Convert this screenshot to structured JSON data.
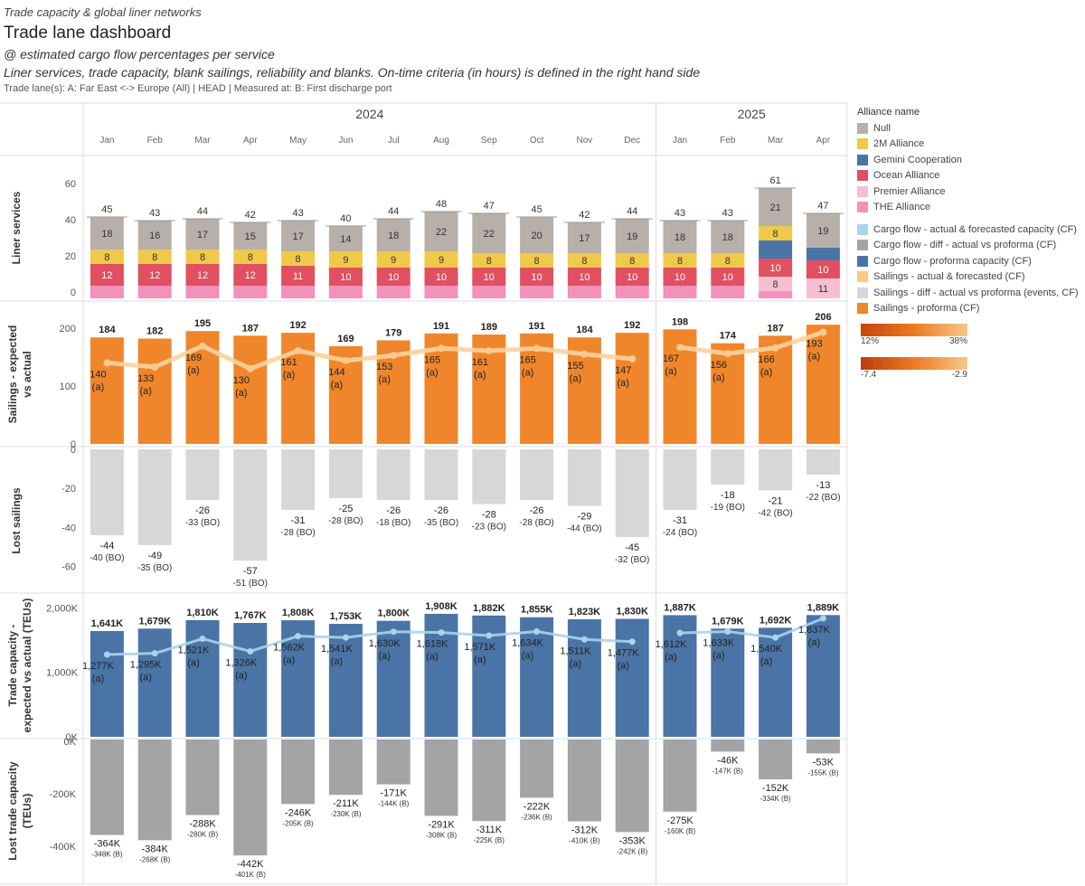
{
  "header": {
    "supertitle": "Trade capacity & global liner networks",
    "title": "Trade lane dashboard",
    "subtitle1": "@ estimated cargo flow percentages per service",
    "subtitle2": "Liner services, trade capacity, blank sailings, reliability and blanks. On-time criteria (in hours) is defined  in the right hand side",
    "filter": "Trade lane(s): A: Far East <-> Europe (All)  |  HEAD  |  Measured at: B: First discharge port"
  },
  "legend": {
    "title": "Alliance name",
    "items": [
      {
        "label": "Null",
        "color": "#b7b0aa"
      },
      {
        "label": "2M Alliance",
        "color": "#f1c94a"
      },
      {
        "label": "Gemini Cooperation",
        "color": "#4a74a6"
      },
      {
        "label": "Ocean Alliance",
        "color": "#e05060"
      },
      {
        "label": "Premier Alliance",
        "color": "#f6bed1"
      },
      {
        "label": "THE Alliance",
        "color": "#f291bb"
      }
    ],
    "items2": [
      {
        "label": "Cargo flow - actual & forecasted capacity (CF)",
        "color": "#a9d4ec"
      },
      {
        "label": "Cargo flow - diff - actual vs proforma (CF)",
        "color": "#a4a4a4"
      },
      {
        "label": "Cargo flow - proforma capacity (CF)",
        "color": "#4a74a6"
      },
      {
        "label": "Sailings - actual & forecasted (CF)",
        "color": "#f8c98d"
      },
      {
        "label": "Sailings - diff - actual vs proforma (events, CF)",
        "color": "#d7d7d7"
      },
      {
        "label": "Sailings - proforma (CF)",
        "color": "#f0862b"
      }
    ],
    "gradient1": {
      "min": "12%",
      "max": "38%"
    },
    "gradient2": {
      "min": "-7.4",
      "max": "-2.9"
    }
  },
  "chart_data": {
    "type": "bar",
    "years": [
      {
        "label": "2024",
        "months": 12
      },
      {
        "label": "2025",
        "months": 4
      }
    ],
    "categories": [
      "Jan",
      "Feb",
      "Mar",
      "Apr",
      "May",
      "Jun",
      "Jul",
      "Aug",
      "Sep",
      "Oct",
      "Nov",
      "Dec",
      "Jan",
      "Feb",
      "Mar",
      "Apr"
    ],
    "liner_services": {
      "ylabel": "Liner services",
      "ticks": [
        "60",
        "40",
        "20",
        "0"
      ],
      "totals": [
        "45",
        "43",
        "44",
        "42",
        "43",
        "40",
        "44",
        "48",
        "47",
        "45",
        "42",
        "44",
        "43",
        "43",
        "61",
        "47"
      ],
      "segments": [
        [
          {
            "a": "THE",
            "v": 7
          },
          {
            "a": "Ocean",
            "v": 12,
            "l": "12"
          },
          {
            "a": "2M",
            "v": 8,
            "l": "8"
          },
          {
            "a": "Null",
            "v": 18,
            "l": "18"
          }
        ],
        [
          {
            "a": "THE",
            "v": 7
          },
          {
            "a": "Ocean",
            "v": 12,
            "l": "12"
          },
          {
            "a": "2M",
            "v": 8,
            "l": "8"
          },
          {
            "a": "Null",
            "v": 16,
            "l": "16"
          }
        ],
        [
          {
            "a": "THE",
            "v": 7
          },
          {
            "a": "Ocean",
            "v": 12,
            "l": "12"
          },
          {
            "a": "2M",
            "v": 8,
            "l": "8"
          },
          {
            "a": "Null",
            "v": 17,
            "l": "17"
          }
        ],
        [
          {
            "a": "THE",
            "v": 7
          },
          {
            "a": "Ocean",
            "v": 12,
            "l": "12"
          },
          {
            "a": "2M",
            "v": 8,
            "l": "8"
          },
          {
            "a": "Null",
            "v": 15,
            "l": "15"
          }
        ],
        [
          {
            "a": "THE",
            "v": 7
          },
          {
            "a": "Ocean",
            "v": 11,
            "l": "11"
          },
          {
            "a": "2M",
            "v": 8,
            "l": "8"
          },
          {
            "a": "Null",
            "v": 17,
            "l": "17"
          }
        ],
        [
          {
            "a": "THE",
            "v": 7
          },
          {
            "a": "Ocean",
            "v": 10,
            "l": "10"
          },
          {
            "a": "2M",
            "v": 9,
            "l": "9"
          },
          {
            "a": "Null",
            "v": 14,
            "l": "14"
          }
        ],
        [
          {
            "a": "THE",
            "v": 7
          },
          {
            "a": "Ocean",
            "v": 10,
            "l": "10"
          },
          {
            "a": "2M",
            "v": 9,
            "l": "9"
          },
          {
            "a": "Null",
            "v": 18,
            "l": "18"
          }
        ],
        [
          {
            "a": "THE",
            "v": 7
          },
          {
            "a": "Ocean",
            "v": 10,
            "l": "10"
          },
          {
            "a": "2M",
            "v": 9,
            "l": "9"
          },
          {
            "a": "Null",
            "v": 22,
            "l": "22"
          }
        ],
        [
          {
            "a": "THE",
            "v": 7
          },
          {
            "a": "Ocean",
            "v": 10,
            "l": "10"
          },
          {
            "a": "2M",
            "v": 8,
            "l": "8"
          },
          {
            "a": "Null",
            "v": 22,
            "l": "22"
          }
        ],
        [
          {
            "a": "THE",
            "v": 7
          },
          {
            "a": "Ocean",
            "v": 10,
            "l": "10"
          },
          {
            "a": "2M",
            "v": 8,
            "l": "8"
          },
          {
            "a": "Null",
            "v": 20,
            "l": "20"
          }
        ],
        [
          {
            "a": "THE",
            "v": 7
          },
          {
            "a": "Ocean",
            "v": 10,
            "l": "10"
          },
          {
            "a": "2M",
            "v": 8,
            "l": "8"
          },
          {
            "a": "Null",
            "v": 17,
            "l": "17"
          }
        ],
        [
          {
            "a": "THE",
            "v": 7
          },
          {
            "a": "Ocean",
            "v": 10,
            "l": "10"
          },
          {
            "a": "2M",
            "v": 8,
            "l": "8"
          },
          {
            "a": "Null",
            "v": 19,
            "l": "19"
          }
        ],
        [
          {
            "a": "THE",
            "v": 7
          },
          {
            "a": "Ocean",
            "v": 10,
            "l": "10"
          },
          {
            "a": "2M",
            "v": 8,
            "l": "8"
          },
          {
            "a": "Null",
            "v": 18,
            "l": "18"
          }
        ],
        [
          {
            "a": "THE",
            "v": 7
          },
          {
            "a": "Ocean",
            "v": 10,
            "l": "10"
          },
          {
            "a": "2M",
            "v": 8,
            "l": "8"
          },
          {
            "a": "Null",
            "v": 18,
            "l": "18"
          }
        ],
        [
          {
            "a": "THE",
            "v": 4
          },
          {
            "a": "Premier",
            "v": 8,
            "l": "8"
          },
          {
            "a": "Ocean",
            "v": 10,
            "l": "10"
          },
          {
            "a": "Gemini",
            "v": 10
          },
          {
            "a": "2M",
            "v": 8,
            "l": "8"
          },
          {
            "a": "Null",
            "v": 21,
            "l": "21"
          }
        ],
        [
          {
            "a": "Premier",
            "v": 11,
            "l": "11"
          },
          {
            "a": "Ocean",
            "v": 10,
            "l": "10"
          },
          {
            "a": "Gemini",
            "v": 7
          },
          {
            "a": "Null",
            "v": 19,
            "l": "19"
          }
        ]
      ]
    },
    "sailings": {
      "ylabel": "Sailings - expected vs actual",
      "ticks": [
        "200",
        "100",
        "0"
      ],
      "proforma": [
        184,
        182,
        195,
        187,
        192,
        169,
        179,
        191,
        189,
        191,
        184,
        192,
        198,
        174,
        187,
        206
      ],
      "actual": [
        140,
        133,
        169,
        130,
        161,
        144,
        153,
        165,
        161,
        165,
        155,
        147,
        167,
        156,
        166,
        193
      ],
      "actual_labels": [
        "140",
        "133",
        "169",
        "130",
        "161",
        "144",
        "153",
        "165",
        "161",
        "165",
        "155",
        "147",
        "167",
        "156",
        "166",
        "193"
      ],
      "actual_suffix": "(a)"
    },
    "lost_sailings": {
      "ylabel": "Lost sailings",
      "ticks": [
        "0",
        "-20",
        "-40",
        "-60"
      ],
      "values": [
        -44,
        -49,
        -26,
        -57,
        -31,
        -25,
        -26,
        -26,
        -28,
        -26,
        -29,
        -45,
        -31,
        -18,
        -21,
        -13
      ],
      "labels": [
        "-44",
        "-49",
        "-26",
        "-57",
        "-31",
        "-25",
        "-26",
        "-26",
        "-28",
        "-26",
        "-29",
        "-45",
        "-31",
        "-18",
        "-21",
        "-13"
      ],
      "blank_labels": [
        "-40 (BO)",
        "-35 (BO)",
        "-33 (BO)",
        "-51 (BO)",
        "-28 (BO)",
        "-28 (BO)",
        "-18 (BO)",
        "-35 (BO)",
        "-23 (BO)",
        "-28 (BO)",
        "-44 (BO)",
        "-32 (BO)",
        "-24 (BO)",
        "-19 (BO)",
        "-42 (BO)",
        "-22 (BO)"
      ]
    },
    "trade_capacity": {
      "ylabel": "Trade capacity - expected vs actual (TEUs)",
      "ticks": [
        "2,000K",
        "1,000K",
        "0K"
      ],
      "proforma": [
        1641,
        1679,
        1810,
        1767,
        1808,
        1753,
        1800,
        1908,
        1882,
        1855,
        1823,
        1830,
        1887,
        1679,
        1692,
        1889
      ],
      "proforma_labels": [
        "1,641K",
        "1,679K",
        "1,810K",
        "1,767K",
        "1,808K",
        "1,753K",
        "1,800K",
        "1,908K",
        "1,882K",
        "1,855K",
        "1,823K",
        "1,830K",
        "1,887K",
        "1,679K",
        "1,692K",
        "1,889K"
      ],
      "actual": [
        1277,
        1295,
        1521,
        1326,
        1562,
        1541,
        1630,
        1618,
        1571,
        1634,
        1511,
        1477,
        1612,
        1633,
        1540,
        1837
      ],
      "actual_labels": [
        "1,277K",
        "1,295K",
        "1,521K",
        "1,326K",
        "1,562K",
        "1,541K",
        "1,630K",
        "1,618K",
        "1,571K",
        "1,634K",
        "1,511K",
        "1,477K",
        "1,612K",
        "1,633K",
        "1,540K",
        "1,837K"
      ],
      "actual_suffix": "(a)"
    },
    "lost_capacity": {
      "ylabel": "Lost trade capacity (TEUs)",
      "ticks": [
        "0K",
        "-200K",
        "-400K"
      ],
      "values": [
        -364,
        -384,
        -288,
        -442,
        -246,
        -211,
        -171,
        -291,
        -311,
        -222,
        -312,
        -353,
        -275,
        -46,
        -152,
        -53
      ],
      "labels": [
        "-364K",
        "-384K",
        "-288K",
        "-442K",
        "-246K",
        "-211K",
        "-171K",
        "-291K",
        "-311K",
        "-222K",
        "-312K",
        "-353K",
        "-275K",
        "-46K",
        "-152K",
        "-53K"
      ],
      "blank_labels": [
        "-348K (B)",
        "-268K (B)",
        "-280K (B)",
        "-401K (B)",
        "-205K (B)",
        "-230K (B)",
        "-144K (B)",
        "-308K (B)",
        "-225K (B)",
        "-236K (B)",
        "-410K (B)",
        "-242K (B)",
        "-160K (B)",
        "-147K (B)",
        "-334K (B)",
        "-155K (B)"
      ]
    }
  }
}
